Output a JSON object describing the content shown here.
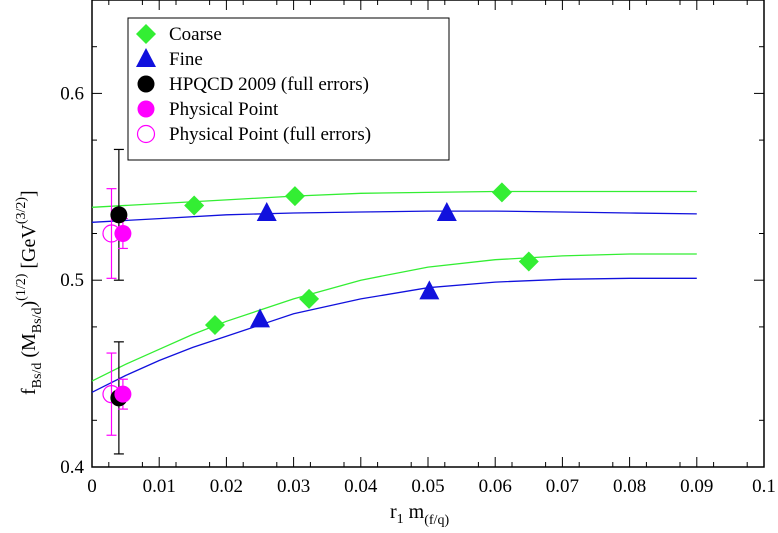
{
  "chart_data": {
    "type": "scatter",
    "xlim": [
      0,
      0.1
    ],
    "ylim": [
      0.4,
      0.65
    ],
    "x_ticks": [
      "0",
      "0.01",
      "0.02",
      "0.03",
      "0.04",
      "0.05",
      "0.06",
      "0.07",
      "0.08",
      "0.09",
      "0.1"
    ],
    "y_ticks": [
      "0.4",
      "0.5",
      "0.6"
    ],
    "xlabel": {
      "main": "r",
      "sub1": "1",
      "main2": " m",
      "sub2": "(f/q)"
    },
    "ylabel": {
      "f": "f",
      "f_sub": "Bs/d",
      "m": " (M",
      "m_sub": "Bs/d",
      "m_close": ")",
      "exp": "(1/2)",
      "unit": " [GeV",
      "unit_exp": "(3/2)",
      "unit_close": "]"
    },
    "legend_position": "top-left",
    "grid": false,
    "colors": {
      "coarse": "#33ee33",
      "fine": "#1111dd",
      "hpqcd": "#000000",
      "physical": "#ff00ff"
    },
    "series": [
      {
        "name": "Coarse",
        "marker": "diamond",
        "points": [
          [
            0.0152,
            0.54
          ],
          [
            0.0302,
            0.545
          ],
          [
            0.061,
            0.547
          ],
          [
            0.0183,
            0.476
          ],
          [
            0.0323,
            0.49
          ],
          [
            0.065,
            0.51
          ]
        ]
      },
      {
        "name": "Fine",
        "marker": "triangle",
        "points": [
          [
            0.026,
            0.536
          ],
          [
            0.0528,
            0.536
          ],
          [
            0.025,
            0.479
          ],
          [
            0.0502,
            0.494
          ]
        ]
      },
      {
        "name": "HPQCD 2009 (full errors)",
        "marker": "filled-circle",
        "points": [
          [
            0.004,
            0.535,
            0.035
          ],
          [
            0.004,
            0.437,
            0.03
          ]
        ]
      },
      {
        "name": "Physical Point",
        "marker": "filled-circle",
        "points": [
          [
            0.0046,
            0.525,
            0.008
          ],
          [
            0.0046,
            0.439,
            0.008
          ]
        ]
      },
      {
        "name": "Physical Point (full errors)",
        "marker": "open-circle",
        "points": [
          [
            0.0029,
            0.525,
            0.024
          ],
          [
            0.0029,
            0.439,
            0.022
          ]
        ]
      }
    ],
    "fit_curves": [
      {
        "color": "coarse",
        "x": [
          0,
          0.01,
          0.02,
          0.03,
          0.04,
          0.05,
          0.06,
          0.07,
          0.08,
          0.09
        ],
        "y": [
          0.539,
          0.541,
          0.543,
          0.545,
          0.5465,
          0.547,
          0.5475,
          0.5475,
          0.5475,
          0.5475
        ]
      },
      {
        "color": "fine",
        "x": [
          0,
          0.01,
          0.02,
          0.03,
          0.04,
          0.05,
          0.06,
          0.07,
          0.08,
          0.09
        ],
        "y": [
          0.531,
          0.533,
          0.535,
          0.536,
          0.5365,
          0.537,
          0.537,
          0.5365,
          0.536,
          0.5355
        ]
      },
      {
        "color": "coarse",
        "x": [
          0,
          0.005,
          0.01,
          0.015,
          0.02,
          0.03,
          0.04,
          0.05,
          0.06,
          0.07,
          0.08,
          0.09
        ],
        "y": [
          0.446,
          0.455,
          0.463,
          0.471,
          0.478,
          0.49,
          0.5,
          0.507,
          0.511,
          0.513,
          0.514,
          0.514
        ]
      },
      {
        "color": "fine",
        "x": [
          0,
          0.005,
          0.01,
          0.015,
          0.02,
          0.03,
          0.04,
          0.05,
          0.06,
          0.07,
          0.08,
          0.09
        ],
        "y": [
          0.44,
          0.449,
          0.457,
          0.464,
          0.47,
          0.482,
          0.49,
          0.496,
          0.499,
          0.5005,
          0.501,
          0.501
        ]
      }
    ]
  }
}
